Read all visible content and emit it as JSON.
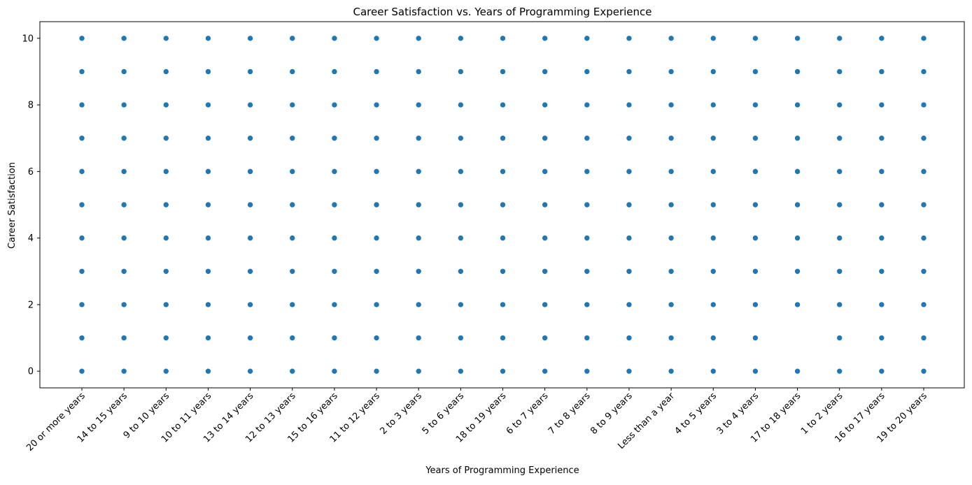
{
  "chart_data": {
    "type": "scatter",
    "title": "Career Satisfaction vs. Years of Programming Experience",
    "xlabel": "Years of Programming Experience",
    "ylabel": "Career Satisfaction",
    "categories": [
      "20 or more years",
      "14 to 15 years",
      "9 to 10 years",
      "10 to 11 years",
      "13 to 14 years",
      "12 to 13 years",
      "15 to 16 years",
      "11 to 12 years",
      "2 to 3 years",
      "5 to 6 years",
      "18 to 19 years",
      "6 to 7 years",
      "7 to 8 years",
      "8 to 9 years",
      "Less than a year",
      "4 to 5 years",
      "3 to 4 years",
      "17 to 18 years",
      "1 to 2 years",
      "16 to 17 years",
      "19 to 20 years"
    ],
    "points_by_category": [
      [
        0,
        1,
        2,
        3,
        4,
        5,
        6,
        7,
        8,
        9,
        10
      ],
      [
        0,
        1,
        2,
        3,
        4,
        5,
        6,
        7,
        8,
        9,
        10
      ],
      [
        0,
        1,
        2,
        3,
        4,
        5,
        6,
        7,
        8,
        9,
        10
      ],
      [
        0,
        1,
        2,
        3,
        4,
        5,
        6,
        7,
        8,
        9,
        10
      ],
      [
        0,
        1,
        2,
        3,
        4,
        5,
        6,
        7,
        8,
        9,
        10
      ],
      [
        0,
        1,
        2,
        3,
        4,
        5,
        6,
        7,
        8,
        9,
        10
      ],
      [
        0,
        1,
        2,
        3,
        4,
        5,
        6,
        7,
        8,
        9,
        10
      ],
      [
        0,
        1,
        2,
        3,
        4,
        5,
        6,
        7,
        8,
        9,
        10
      ],
      [
        0,
        1,
        2,
        3,
        4,
        5,
        6,
        7,
        8,
        9,
        10
      ],
      [
        0,
        1,
        2,
        3,
        4,
        5,
        6,
        7,
        8,
        9,
        10
      ],
      [
        0,
        1,
        2,
        3,
        4,
        5,
        6,
        7,
        8,
        9,
        10
      ],
      [
        0,
        1,
        2,
        3,
        4,
        5,
        6,
        7,
        8,
        9,
        10
      ],
      [
        0,
        1,
        2,
        3,
        4,
        5,
        6,
        7,
        8,
        9,
        10
      ],
      [
        0,
        1,
        2,
        3,
        4,
        5,
        6,
        7,
        8,
        9,
        10
      ],
      [
        0,
        1,
        2,
        3,
        4,
        5,
        6,
        7,
        8,
        9,
        10
      ],
      [
        0,
        1,
        2,
        3,
        4,
        5,
        6,
        7,
        8,
        9,
        10
      ],
      [
        0,
        1,
        2,
        3,
        4,
        5,
        6,
        7,
        8,
        9,
        10
      ],
      [
        0,
        2,
        3,
        4,
        5,
        6,
        7,
        8,
        9,
        10
      ],
      [
        0,
        1,
        2,
        3,
        4,
        5,
        6,
        7,
        8,
        9,
        10
      ],
      [
        0,
        1,
        2,
        3,
        4,
        5,
        6,
        7,
        8,
        9,
        10
      ],
      [
        0,
        1,
        2,
        3,
        4,
        5,
        6,
        7,
        8,
        9,
        10
      ]
    ],
    "yticks": [
      0,
      2,
      4,
      6,
      8,
      10
    ],
    "ylim": [
      -0.5,
      10.5
    ],
    "grid": false,
    "legend": "none",
    "marker_color": "#1f77b4"
  }
}
